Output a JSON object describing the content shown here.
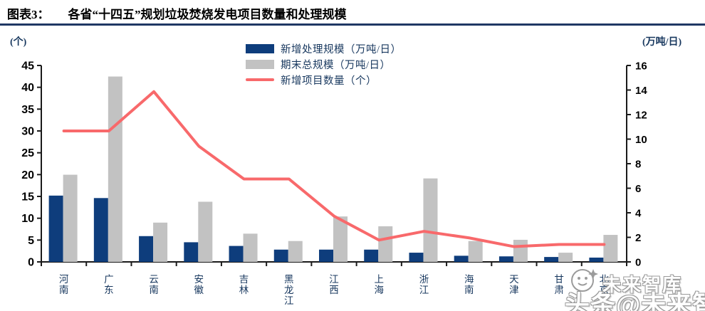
{
  "header": {
    "label": "图表3：",
    "title": "各省“十四五”规划垃圾焚烧发电项目数量和处理规模"
  },
  "legend": [
    {
      "label": "新增处理规模（万吨/日）",
      "type": "bar",
      "color": "#0E3D7C"
    },
    {
      "label": "期末总规模（万吨/日）",
      "type": "bar",
      "color": "#C2C2C2"
    },
    {
      "label": "新增项目数量（个）",
      "type": "line",
      "color": "#F8696B"
    }
  ],
  "chart_data": {
    "type": "combo-bar-line",
    "title": "各省“十四五”规划垃圾焚烧发电项目数量和处理规模",
    "categories": [
      "河南",
      "广东",
      "云南",
      "安徽",
      "吉林",
      "黑龙江",
      "江西",
      "上海",
      "浙江",
      "海南",
      "天津",
      "甘肃",
      "北京"
    ],
    "series": [
      {
        "name": "新增处理规模（万吨/日）",
        "type": "bar",
        "axis": "right",
        "unit": "万吨/日",
        "color": "#0E3D7C",
        "values": [
          5.4,
          5.2,
          2.1,
          1.6,
          1.3,
          1.0,
          1.0,
          1.0,
          0.75,
          0.5,
          0.45,
          0.4,
          0.35
        ]
      },
      {
        "name": "期末总规模（万吨/日）",
        "type": "bar",
        "axis": "right",
        "unit": "万吨/日",
        "color": "#C2C2C2",
        "values": [
          7.1,
          15.1,
          3.2,
          4.9,
          2.3,
          1.7,
          3.7,
          2.9,
          6.8,
          1.7,
          1.8,
          0.75,
          2.2
        ]
      },
      {
        "name": "新增项目数量（个）",
        "type": "line",
        "axis": "left",
        "unit": "个",
        "color": "#F8696B",
        "values": [
          30,
          30,
          39,
          26.5,
          19,
          19,
          10.5,
          5,
          7,
          5.5,
          3.5,
          4,
          4
        ]
      }
    ],
    "left_axis": {
      "unit": "(个)",
      "min": 0,
      "max": 45,
      "ticks": [
        0,
        5,
        10,
        15,
        20,
        25,
        30,
        35,
        40,
        45
      ]
    },
    "right_axis": {
      "unit": "(万吨/日)",
      "min": 0,
      "max": 16,
      "ticks": [
        0,
        2,
        4,
        6,
        8,
        10,
        12,
        14,
        16
      ]
    },
    "grid": false,
    "legend_position": "top-center"
  },
  "watermark": {
    "line1": "未来智库",
    "line2": "头条@未来智库"
  },
  "colors": {
    "title_rule": "#1F3864",
    "axis": "#1A1A1A",
    "tick_text": "#000000",
    "cjk_text": "#17375E"
  }
}
